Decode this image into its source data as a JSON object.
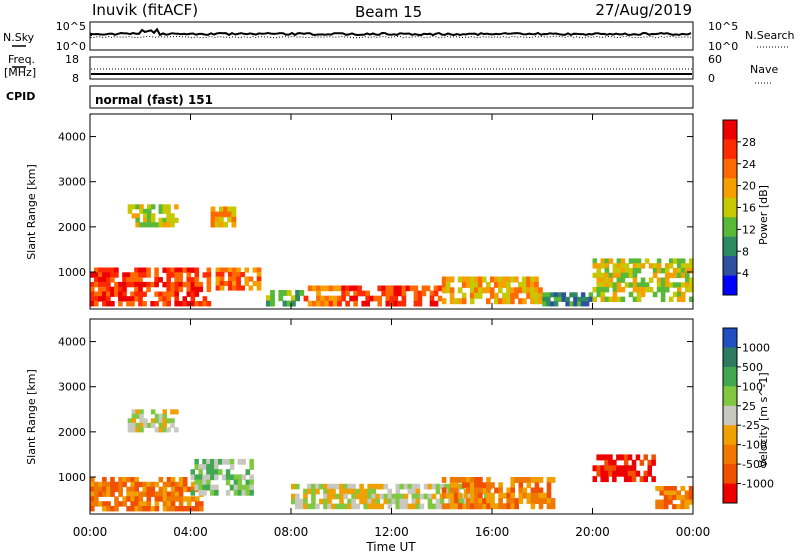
{
  "header": {
    "title_left": "Inuvik (fitACF)",
    "title_center": "Beam 15",
    "title_right": "27/Aug/2019"
  },
  "strips": {
    "nsky_label": "N.Sky",
    "nsearch_label": "N.Search",
    "nsky_ticks": [
      "10^5",
      "10^0"
    ],
    "nsearch_ticks": [
      "10^5",
      "10^0"
    ],
    "freq_label_line1": "Freq.",
    "freq_label_line2": "[MHz]",
    "freq_ticks": [
      "18",
      "8"
    ],
    "nave_label": "Nave",
    "nave_ticks": [
      "60",
      "0"
    ],
    "cpid_label": "CPID",
    "cpid_text": "normal (fast) 151"
  },
  "axes": {
    "ylabel": "Slant Range [km]",
    "y_ticks": [
      "4000",
      "3000",
      "2000",
      "1000"
    ],
    "xlabel": "Time UT",
    "x_ticks": [
      "00:00",
      "04:00",
      "08:00",
      "12:00",
      "16:00",
      "20:00",
      "00:00"
    ]
  },
  "power_scale": {
    "label": "Power [dB]",
    "ticks": [
      "28",
      "24",
      "20",
      "16",
      "12",
      "8",
      "4"
    ],
    "colors": [
      "#ee0000",
      "#ff2a00",
      "#ff6a00",
      "#f5a000",
      "#c8c800",
      "#58b838",
      "#2e8a60",
      "#2f4fa0",
      "#0000ff"
    ]
  },
  "velocity_scale": {
    "label": "Velocity [m s^-1]",
    "ticks": [
      "1000",
      "500",
      "100",
      "25",
      "-25",
      "-100",
      "-500",
      "-1000"
    ],
    "colors": [
      "#2050c0",
      "#2e7a60",
      "#40a850",
      "#80c840",
      "#c8c8c0",
      "#f0a000",
      "#f07800",
      "#f05000",
      "#ee0000"
    ]
  },
  "chart_data": [
    {
      "type": "heatmap",
      "title": "Power",
      "xlabel": "Time UT",
      "ylabel": "Slant Range [km]",
      "x_ticks": [
        "00:00",
        "04:00",
        "08:00",
        "12:00",
        "16:00",
        "20:00",
        "00:00"
      ],
      "xlim_hours": [
        0,
        24
      ],
      "ylim_km": [
        180,
        4500
      ],
      "colorbar": {
        "label": "Power [dB]",
        "range": [
          0,
          30
        ]
      },
      "regions": [
        {
          "t": [
            0.0,
            4.8
          ],
          "r": [
            250,
            1100
          ],
          "value": 26
        },
        {
          "t": [
            1.5,
            3.5
          ],
          "r": [
            2000,
            2500
          ],
          "value": 14
        },
        {
          "t": [
            4.8,
            5.8
          ],
          "r": [
            2000,
            2450
          ],
          "value": 18
        },
        {
          "t": [
            5.0,
            6.8
          ],
          "r": [
            600,
            1100
          ],
          "value": 22
        },
        {
          "t": [
            7.0,
            8.5
          ],
          "r": [
            250,
            600
          ],
          "value": 10
        },
        {
          "t": [
            8.5,
            10.0
          ],
          "r": [
            250,
            700
          ],
          "value": 22
        },
        {
          "t": [
            10.0,
            14.0
          ],
          "r": [
            250,
            700
          ],
          "value": 26
        },
        {
          "t": [
            14.0,
            18.0
          ],
          "r": [
            300,
            900
          ],
          "value": 20
        },
        {
          "t": [
            18.0,
            20.0
          ],
          "r": [
            250,
            550
          ],
          "value": 8
        },
        {
          "t": [
            20.0,
            24.0
          ],
          "r": [
            350,
            1300
          ],
          "value": 14
        }
      ]
    },
    {
      "type": "heatmap",
      "title": "Velocity",
      "xlabel": "Time UT",
      "ylabel": "Slant Range [km]",
      "x_ticks": [
        "00:00",
        "04:00",
        "08:00",
        "12:00",
        "16:00",
        "20:00",
        "00:00"
      ],
      "xlim_hours": [
        0,
        24
      ],
      "ylim_km": [
        180,
        4500
      ],
      "colorbar": {
        "label": "Velocity [m s^-1]",
        "range": [
          -1000,
          1000
        ]
      },
      "regions": [
        {
          "t": [
            0.0,
            4.5
          ],
          "r": [
            250,
            1000
          ],
          "value": -100
        },
        {
          "t": [
            1.5,
            3.5
          ],
          "r": [
            2000,
            2500
          ],
          "value": 0
        },
        {
          "t": [
            4.0,
            6.5
          ],
          "r": [
            600,
            1400
          ],
          "value": 50
        },
        {
          "t": [
            8.0,
            16.0
          ],
          "r": [
            300,
            850
          ],
          "value": 0
        },
        {
          "t": [
            14.0,
            18.5
          ],
          "r": [
            300,
            1000
          ],
          "value": -150
        },
        {
          "t": [
            20.0,
            22.5
          ],
          "r": [
            900,
            1500
          ],
          "value": -500
        },
        {
          "t": [
            22.5,
            24.0
          ],
          "r": [
            300,
            800
          ],
          "value": -100
        }
      ]
    }
  ]
}
